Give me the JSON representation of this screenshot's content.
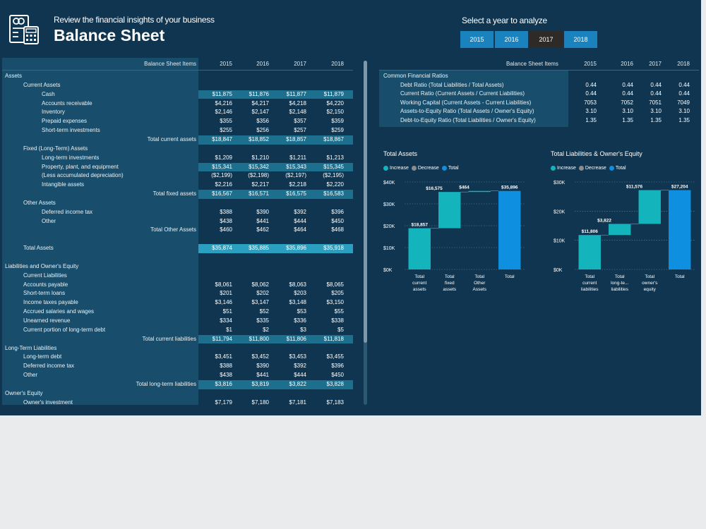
{
  "header": {
    "subtitle": "Review the financial insights of your business",
    "title": "Balance Sheet",
    "year_prompt": "Select a year to analyze",
    "years": [
      "2015",
      "2016",
      "2017",
      "2018"
    ],
    "selected_year": "2017"
  },
  "balance_table": {
    "col_header": "Balance Sheet Items",
    "years": [
      "2015",
      "2016",
      "2017",
      "2018"
    ],
    "rows": [
      {
        "label": "Assets",
        "level": 0,
        "values": []
      },
      {
        "label": "Current Assets",
        "level": 1,
        "values": []
      },
      {
        "label": "Cash",
        "level": 2,
        "values": [
          "$11,875",
          "$11,876",
          "$11,877",
          "$11,879"
        ],
        "hl": 1
      },
      {
        "label": "Accounts receivable",
        "level": 2,
        "values": [
          "$4,216",
          "$4,217",
          "$4,218",
          "$4,220"
        ]
      },
      {
        "label": "Inventory",
        "level": 2,
        "values": [
          "$2,146",
          "$2,147",
          "$2,148",
          "$2,150"
        ]
      },
      {
        "label": "Prepaid expenses",
        "level": 2,
        "values": [
          "$355",
          "$356",
          "$357",
          "$359"
        ]
      },
      {
        "label": "Short-term investments",
        "level": 2,
        "values": [
          "$255",
          "$256",
          "$257",
          "$259"
        ]
      },
      {
        "label": "Total current assets",
        "level": 3,
        "values": [
          "$18,847",
          "$18,852",
          "$18,857",
          "$18,867"
        ],
        "hl": 1
      },
      {
        "label": "Fixed (Long-Term) Assets",
        "level": 1,
        "values": []
      },
      {
        "label": "Long-term investments",
        "level": 2,
        "values": [
          "$1,209",
          "$1,210",
          "$1,211",
          "$1,213"
        ]
      },
      {
        "label": "Property, plant, and equipment",
        "level": 2,
        "values": [
          "$15,341",
          "$15,342",
          "$15,343",
          "$15,345"
        ],
        "hl": 1
      },
      {
        "label": "(Less accumulated depreciation)",
        "level": 2,
        "values": [
          "($2,199)",
          "($2,198)",
          "($2,197)",
          "($2,195)"
        ]
      },
      {
        "label": "Intangible assets",
        "level": 2,
        "values": [
          "$2,216",
          "$2,217",
          "$2,218",
          "$2,220"
        ]
      },
      {
        "label": "Total fixed assets",
        "level": 3,
        "values": [
          "$16,567",
          "$16,571",
          "$16,575",
          "$16,583"
        ],
        "hl": 1
      },
      {
        "label": "Other Assets",
        "level": 1,
        "values": []
      },
      {
        "label": "Deferred income tax",
        "level": 2,
        "values": [
          "$388",
          "$390",
          "$392",
          "$396"
        ]
      },
      {
        "label": "Other",
        "level": 2,
        "values": [
          "$438",
          "$441",
          "$444",
          "$450"
        ]
      },
      {
        "label": "Total Other Assets",
        "level": 3,
        "values": [
          "$460",
          "$462",
          "$464",
          "$468"
        ]
      },
      {
        "label": "",
        "level": 0,
        "values": []
      },
      {
        "label": "Total Assets",
        "level": 1,
        "values": [
          "$35,874",
          "$35,885",
          "$35,896",
          "$35,918"
        ],
        "hl": 2
      },
      {
        "label": "",
        "level": 0,
        "values": []
      },
      {
        "label": "Liabilities and Owner's Equity",
        "level": 0,
        "values": []
      },
      {
        "label": "Current Liabilities",
        "level": 1,
        "values": []
      },
      {
        "label": "Accounts payable",
        "level": 1,
        "values": [
          "$8,061",
          "$8,062",
          "$8,063",
          "$8,065"
        ]
      },
      {
        "label": "Short-term loans",
        "level": 1,
        "values": [
          "$201",
          "$202",
          "$203",
          "$205"
        ]
      },
      {
        "label": "Income taxes payable",
        "level": 1,
        "values": [
          "$3,146",
          "$3,147",
          "$3,148",
          "$3,150"
        ]
      },
      {
        "label": "Accrued salaries and wages",
        "level": 1,
        "values": [
          "$51",
          "$52",
          "$53",
          "$55"
        ]
      },
      {
        "label": "Unearned revenue",
        "level": 1,
        "values": [
          "$334",
          "$335",
          "$336",
          "$338"
        ]
      },
      {
        "label": "Current portion of long-term debt",
        "level": 1,
        "values": [
          "$1",
          "$2",
          "$3",
          "$5"
        ]
      },
      {
        "label": "Total current liabilities",
        "level": 3,
        "values": [
          "$11,794",
          "$11,800",
          "$11,806",
          "$11,818"
        ],
        "hl": 1
      },
      {
        "label": "Long-Term Liabilities",
        "level": 0,
        "values": []
      },
      {
        "label": "Long-term debt",
        "level": 1,
        "values": [
          "$3,451",
          "$3,452",
          "$3,453",
          "$3,455"
        ]
      },
      {
        "label": "Deferred income tax",
        "level": 1,
        "values": [
          "$388",
          "$390",
          "$392",
          "$396"
        ]
      },
      {
        "label": "Other",
        "level": 1,
        "values": [
          "$438",
          "$441",
          "$444",
          "$450"
        ]
      },
      {
        "label": "Total long-term liabilities",
        "level": 3,
        "values": [
          "$3,816",
          "$3,819",
          "$3,822",
          "$3,828"
        ],
        "hl": 1
      },
      {
        "label": "Owner's Equity",
        "level": 0,
        "values": []
      },
      {
        "label": "Owner's investment",
        "level": 1,
        "values": [
          "$7,179",
          "$7,180",
          "$7,181",
          "$7,183"
        ]
      }
    ]
  },
  "ratio_table": {
    "col_header": "Balance Sheet Items",
    "years": [
      "2015",
      "2016",
      "2017",
      "2018"
    ],
    "rows": [
      {
        "label": "Common Financial Ratios",
        "level": 0,
        "values": []
      },
      {
        "label": "Debt Ratio (Total Liabilities / Total Assets)",
        "level": 1,
        "values": [
          "0.44",
          "0.44",
          "0.44",
          "0.44"
        ]
      },
      {
        "label": "Current Ratio (Current Assets / Current Liabilities)",
        "level": 1,
        "values": [
          "0.44",
          "0.44",
          "0.44",
          "0.44"
        ]
      },
      {
        "label": "Working Capital (Current Assets - Current Liabilities)",
        "level": 1,
        "values": [
          "7053",
          "7052",
          "7051",
          "7049"
        ]
      },
      {
        "label": "Assets-to-Equity Ratio (Total Assets / Owner's Equity)",
        "level": 1,
        "values": [
          "3.10",
          "3.10",
          "3.10",
          "3.10"
        ]
      },
      {
        "label": "Debt-to-Equity Ratio (Total Liabilities / Owner's Equity)",
        "level": 1,
        "values": [
          "1.35",
          "1.35",
          "1.35",
          "1.35"
        ]
      }
    ]
  },
  "legend": {
    "increase": "Increase",
    "decrease": "Decrease",
    "total": "Total"
  },
  "colors": {
    "increase": "#14b4bd",
    "decrease": "#8c8c8c",
    "total": "#0f8fe0"
  },
  "chart_data": [
    {
      "type": "bar",
      "subtype": "waterfall",
      "title": "Total Assets",
      "categories": [
        "Total current assets",
        "Total fixed assets",
        "Total Other Assets",
        "Total"
      ],
      "tick_labels": [
        [
          "Total",
          "current",
          "assets"
        ],
        [
          "Total",
          "fixed",
          "assets"
        ],
        [
          "Total",
          "Other",
          "Assets"
        ],
        [
          "Total"
        ]
      ],
      "values": [
        18857,
        16575,
        464,
        35896
      ],
      "kinds": [
        "increase",
        "increase",
        "increase",
        "total"
      ],
      "data_labels": [
        "$18,857",
        "$16,575",
        "$464",
        "$35,896"
      ],
      "ylim": [
        0,
        40000
      ],
      "yticks": [
        0,
        10000,
        20000,
        30000,
        40000
      ],
      "ytick_labels": [
        "$0K",
        "$10K",
        "$20K",
        "$30K",
        "$40K"
      ],
      "legend_placement": "top-left",
      "grid": true
    },
    {
      "type": "bar",
      "subtype": "waterfall",
      "title": "Total Liabilities & Owner's Equity",
      "categories": [
        "Total current liabilities",
        "Total long-term liabilities",
        "Total owner's equity",
        "Total"
      ],
      "tick_labels": [
        [
          "Total",
          "current",
          "liabilities"
        ],
        [
          "Total",
          "long-te...",
          "liabilities"
        ],
        [
          "Total",
          "owner's",
          "equity"
        ],
        [
          "Total"
        ]
      ],
      "values": [
        11806,
        3822,
        11576,
        27204
      ],
      "kinds": [
        "increase",
        "increase",
        "increase",
        "total"
      ],
      "data_labels": [
        "$11,806",
        "$3,822",
        "$11,576",
        "$27,204"
      ],
      "ylim": [
        0,
        30000
      ],
      "yticks": [
        0,
        10000,
        20000,
        30000
      ],
      "ytick_labels": [
        "$0K",
        "$10K",
        "$20K",
        "$30K"
      ],
      "legend_placement": "top-left",
      "grid": true
    }
  ]
}
